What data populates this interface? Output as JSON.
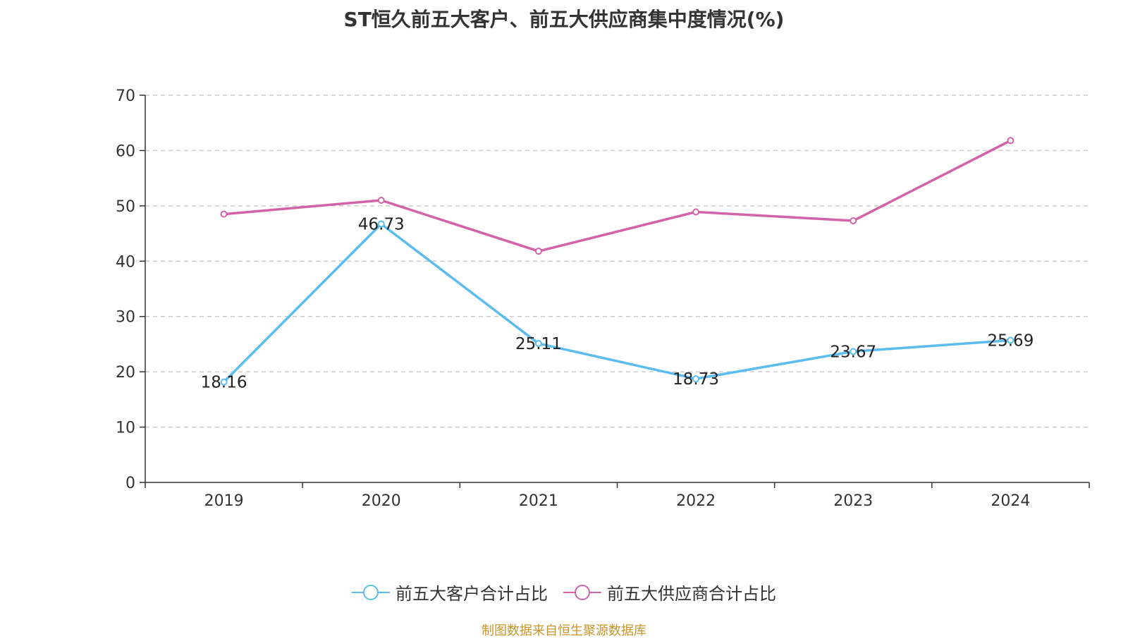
{
  "chart_data": {
    "type": "line",
    "title": "ST恒久前五大客户、前五大供应商集中度情况(%)",
    "categories": [
      "2019",
      "2020",
      "2021",
      "2022",
      "2023",
      "2024"
    ],
    "ylim": [
      0,
      70
    ],
    "yticks": [
      "0",
      "10",
      "20",
      "30",
      "40",
      "50",
      "60",
      "70"
    ],
    "grid": true,
    "legend_position": "bottom",
    "series": [
      {
        "name": "前五大客户合计占比",
        "color": "#5bbcf0",
        "values": [
          18.16,
          46.73,
          25.11,
          18.73,
          23.67,
          25.69
        ],
        "labels": [
          "18.16",
          "46.73",
          "25.11",
          "18.73",
          "23.67",
          "25.69"
        ]
      },
      {
        "name": "前五大供应商合计占比",
        "color": "#d263a8",
        "values": [
          48.5,
          51.0,
          41.8,
          48.9,
          47.3,
          61.8
        ]
      }
    ],
    "source": "制图数据来自恒生聚源数据库"
  }
}
